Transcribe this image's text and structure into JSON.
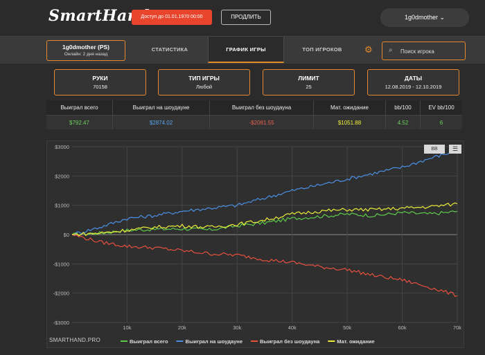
{
  "header": {
    "logo_text": "SmartHand",
    "access_badge": "Доступ до 01.01.1970 00:00",
    "renew_label": "ПРОДЛИТЬ",
    "user_menu_label": "1g0dmother ⌄"
  },
  "nav": {
    "player_name": "1g0dmother (PS)",
    "player_online": "Онлайн: 2 дня назад",
    "tabs": [
      {
        "label": "СТАТИСТИКА"
      },
      {
        "label": "ГРАФИК ИГРЫ"
      },
      {
        "label": "ТОП ИГРОКОВ"
      }
    ],
    "search_placeholder": "Поиск игрока"
  },
  "filters": [
    {
      "label": "РУКИ",
      "value": "70158"
    },
    {
      "label": "ТИП ИГРЫ",
      "value": "Любой"
    },
    {
      "label": "ЛИМИТ",
      "value": "25"
    },
    {
      "label": "ДАТЫ",
      "value": "12.08.2019 - 12.10.2019"
    }
  ],
  "stats": {
    "headers": [
      "Выиграл всего",
      "Выиграл на шоудауне",
      "Выиграл без шоудауна",
      "Мат. ожидание",
      "bb/100",
      "EV bb/100"
    ],
    "values": [
      "$792.47",
      "$2874.02",
      "-$2081.55",
      "$1051.88",
      "4.52",
      "6"
    ],
    "colors": [
      "#6fd45c",
      "#5aa6f0",
      "#e8604f",
      "#f0f03a",
      "#6fd45c",
      "#6fd45c"
    ]
  },
  "chart_controls": {
    "bb_label": "BB",
    "menu_icon": "menu-icon"
  },
  "branding": "SMARTHAND.PRO",
  "chart_data": {
    "type": "line",
    "title": "",
    "xlabel": "",
    "ylabel": "",
    "x_ticks": [
      "10k",
      "20k",
      "30k",
      "40k",
      "50k",
      "60k",
      "70k"
    ],
    "y_ticks": [
      "$3000",
      "$2000",
      "$1000",
      "$0",
      "-$1000",
      "-$2000",
      "-$3000"
    ],
    "xlim": [
      0,
      70000
    ],
    "ylim": [
      -3000,
      3000
    ],
    "x": [
      0,
      5000,
      10000,
      15000,
      20000,
      25000,
      30000,
      35000,
      40000,
      45000,
      50000,
      55000,
      60000,
      65000,
      70000
    ],
    "series": [
      {
        "name": "Выиграл всего",
        "color": "#5ccb4a",
        "values": [
          0,
          50,
          150,
          180,
          200,
          160,
          300,
          400,
          550,
          620,
          700,
          650,
          750,
          700,
          792
        ]
      },
      {
        "name": "Выиграл на шоудауне",
        "color": "#4a90e6",
        "values": [
          0,
          250,
          550,
          650,
          800,
          900,
          1000,
          1250,
          1500,
          1700,
          1900,
          2100,
          2300,
          2600,
          2874
        ]
      },
      {
        "name": "Выиграл без шоудауна",
        "color": "#e8503e",
        "values": [
          0,
          -250,
          -400,
          -450,
          -550,
          -650,
          -700,
          -850,
          -950,
          -1100,
          -1200,
          -1400,
          -1550,
          -1800,
          -2081
        ]
      },
      {
        "name": "Мат. ожидание",
        "color": "#eded3a",
        "values": [
          0,
          50,
          150,
          250,
          300,
          250,
          350,
          500,
          700,
          800,
          850,
          850,
          900,
          950,
          1052
        ]
      }
    ]
  }
}
